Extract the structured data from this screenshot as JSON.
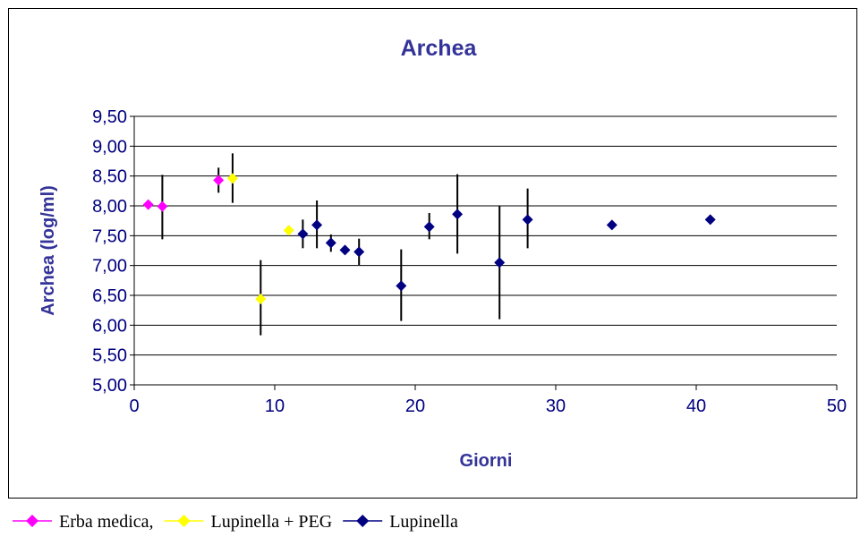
{
  "chart_data": {
    "type": "scatter",
    "title": "Archea",
    "xlabel": "Giorni",
    "ylabel": "Archea (log/ml)",
    "xlim": [
      0,
      50
    ],
    "ylim": [
      5.0,
      9.5
    ],
    "x_ticks": [
      "0",
      "10",
      "20",
      "30",
      "40",
      "50"
    ],
    "y_ticks": [
      "5,00",
      "5,50",
      "6,00",
      "6,50",
      "7,00",
      "7,50",
      "8,00",
      "8,50",
      "9,00",
      "9,50"
    ],
    "grid": "horizontal",
    "legend_position": "bottom",
    "series": [
      {
        "name": "Erba medica,",
        "color": "#ff00ff",
        "points": [
          {
            "x": 1,
            "y": 8.02
          },
          {
            "x": 2,
            "y": 7.99,
            "err_low": 7.44,
            "err_high": 8.52
          },
          {
            "x": 6,
            "y": 8.43,
            "err_low": 8.22,
            "err_high": 8.64
          }
        ]
      },
      {
        "name": "Lupinella + PEG",
        "color": "#ffff00",
        "points": [
          {
            "x": 7,
            "y": 8.46,
            "err_low": 8.05,
            "err_high": 8.88
          },
          {
            "x": 9,
            "y": 6.44,
            "err_low": 5.83,
            "err_high": 7.09
          },
          {
            "x": 11,
            "y": 7.59,
            "err_low": 7.52,
            "err_high": 7.67
          }
        ]
      },
      {
        "name": "Lupinella",
        "color": "#000080",
        "points": [
          {
            "x": 12,
            "y": 7.53,
            "err_low": 7.29,
            "err_high": 7.77
          },
          {
            "x": 13,
            "y": 7.68,
            "err_low": 7.29,
            "err_high": 8.09
          },
          {
            "x": 14,
            "y": 7.38,
            "err_low": 7.23,
            "err_high": 7.52
          },
          {
            "x": 15,
            "y": 7.26
          },
          {
            "x": 16,
            "y": 7.23,
            "err_low": 7.01,
            "err_high": 7.45
          },
          {
            "x": 19,
            "y": 6.66,
            "err_low": 6.07,
            "err_high": 7.27
          },
          {
            "x": 21,
            "y": 7.65,
            "err_low": 7.44,
            "err_high": 7.88
          },
          {
            "x": 23,
            "y": 7.86,
            "err_low": 7.2,
            "err_high": 8.53
          },
          {
            "x": 26,
            "y": 7.05,
            "err_low": 6.1,
            "err_high": 8.0
          },
          {
            "x": 28,
            "y": 7.77,
            "err_low": 7.29,
            "err_high": 8.29
          },
          {
            "x": 34,
            "y": 7.68
          },
          {
            "x": 41,
            "y": 7.77
          }
        ]
      }
    ],
    "legend": [
      {
        "label": "Erba medica,",
        "color": "#ff00ff"
      },
      {
        "label": "Lupinella + PEG",
        "color": "#ffff00"
      },
      {
        "label": "Lupinella",
        "color": "#000080"
      }
    ]
  }
}
